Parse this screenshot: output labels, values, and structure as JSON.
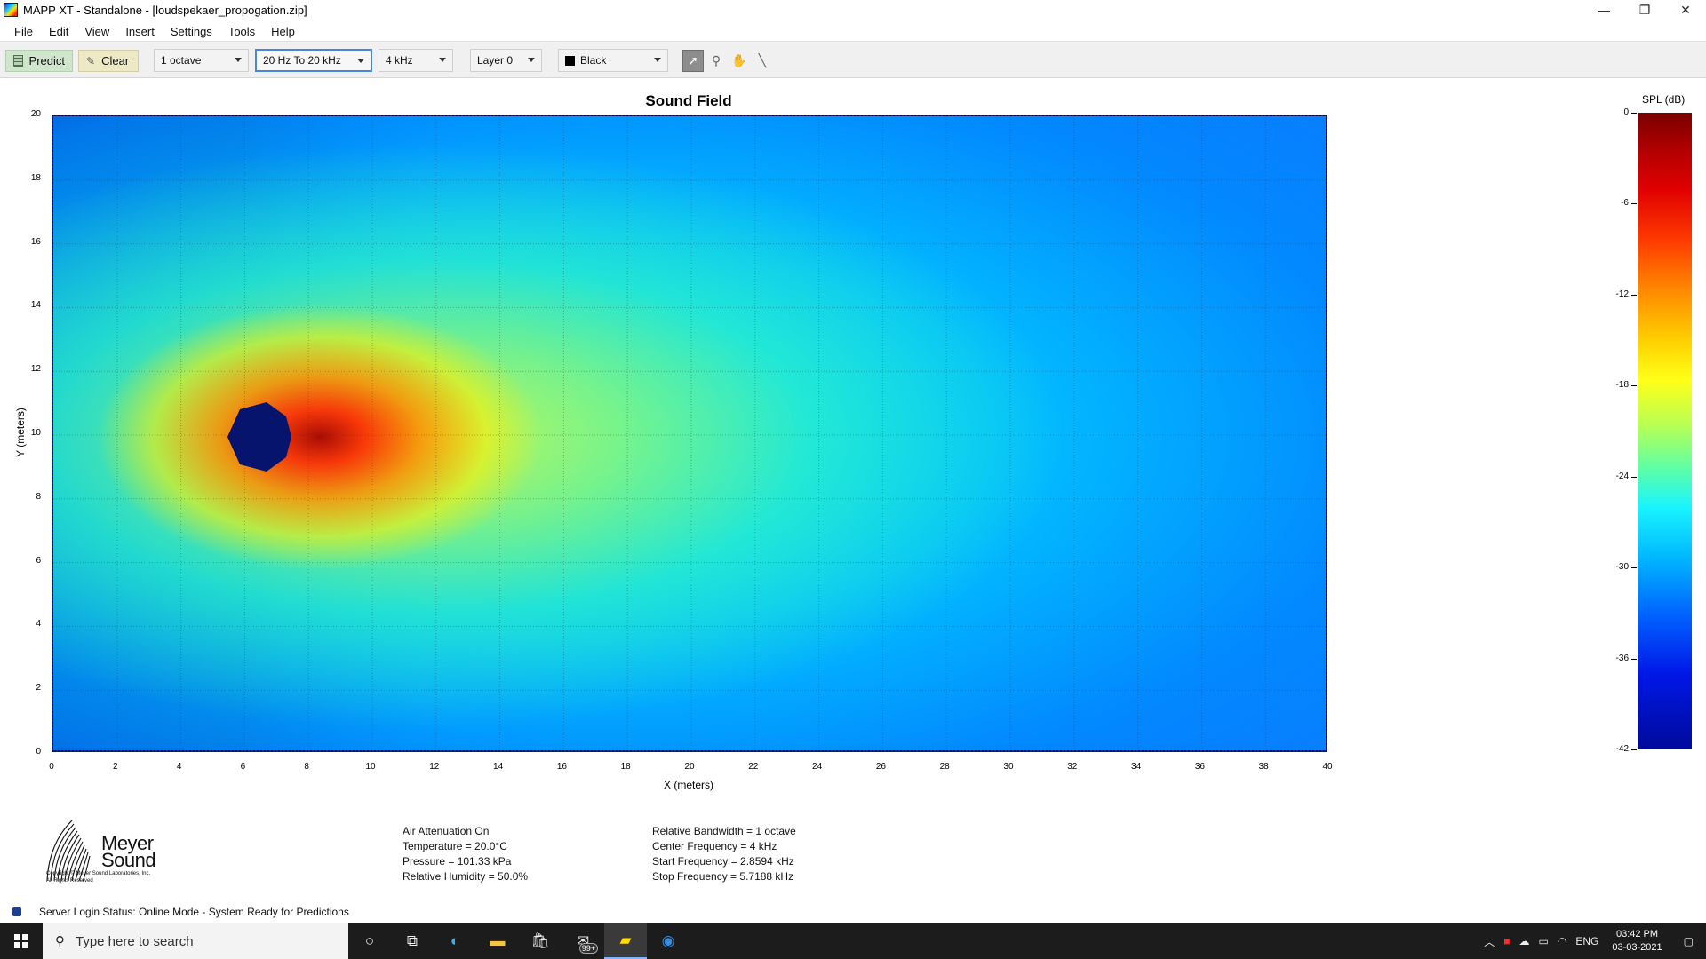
{
  "window": {
    "title": "MAPP XT - Standalone - [loudspekaer_propogation.zip]",
    "controls": {
      "minimize": "—",
      "restore": "❐",
      "close": "✕"
    }
  },
  "menu": [
    "File",
    "Edit",
    "View",
    "Insert",
    "Settings",
    "Tools",
    "Help"
  ],
  "toolbar": {
    "predict_label": "Predict",
    "clear_label": "Clear",
    "bandwidth": "1 octave",
    "range": "20 Hz To 20 kHz",
    "frequency": "4 kHz",
    "layer": "Layer 0",
    "color": "Black",
    "tools": [
      "select-arrow-icon",
      "zoom-icon",
      "pan-hand-icon",
      "measure-line-icon"
    ]
  },
  "plot": {
    "title": "Sound Field",
    "xlabel": "X (meters)",
    "ylabel": "Y (meters)",
    "xticks": [
      "0",
      "2",
      "4",
      "6",
      "8",
      "10",
      "12",
      "14",
      "16",
      "18",
      "20",
      "22",
      "24",
      "26",
      "28",
      "30",
      "32",
      "34",
      "36",
      "38",
      "40"
    ],
    "yticks": [
      "20",
      "18",
      "16",
      "14",
      "12",
      "10",
      "8",
      "6",
      "4",
      "2",
      "0"
    ],
    "xlim": [
      0,
      40
    ],
    "ylim": [
      0,
      20
    ],
    "source_position": {
      "x": 6.8,
      "y": 10
    }
  },
  "colorbar": {
    "title": "SPL (dB)",
    "ticks": [
      "0",
      "-6",
      "-12",
      "-18",
      "-24",
      "-30",
      "-36",
      "-42"
    ],
    "range": [
      -42,
      0
    ]
  },
  "logo": {
    "line1": "Meyer",
    "line2": "Sound",
    "copyright1": "Copyright © Meyer Sound Laboratories, Inc.",
    "copyright2": "All Rights Reserved"
  },
  "info_left": [
    "Air Attenuation On",
    "Temperature = 20.0°C",
    "Pressure = 101.33  kPa",
    "Relative Humidity = 50.0%"
  ],
  "info_right": [
    "Relative Bandwidth = 1 octave",
    "Center Frequency = 4 kHz",
    "Start Frequency = 2.8594 kHz",
    "Stop Frequency = 5.7188 kHz"
  ],
  "status": "Server Login Status: Online Mode - System Ready for Predictions",
  "taskbar": {
    "search_placeholder": "Type here to search",
    "mail_badge": "99+",
    "language": "ENG",
    "time": "03:42 PM",
    "date": "03-03-2021"
  }
}
